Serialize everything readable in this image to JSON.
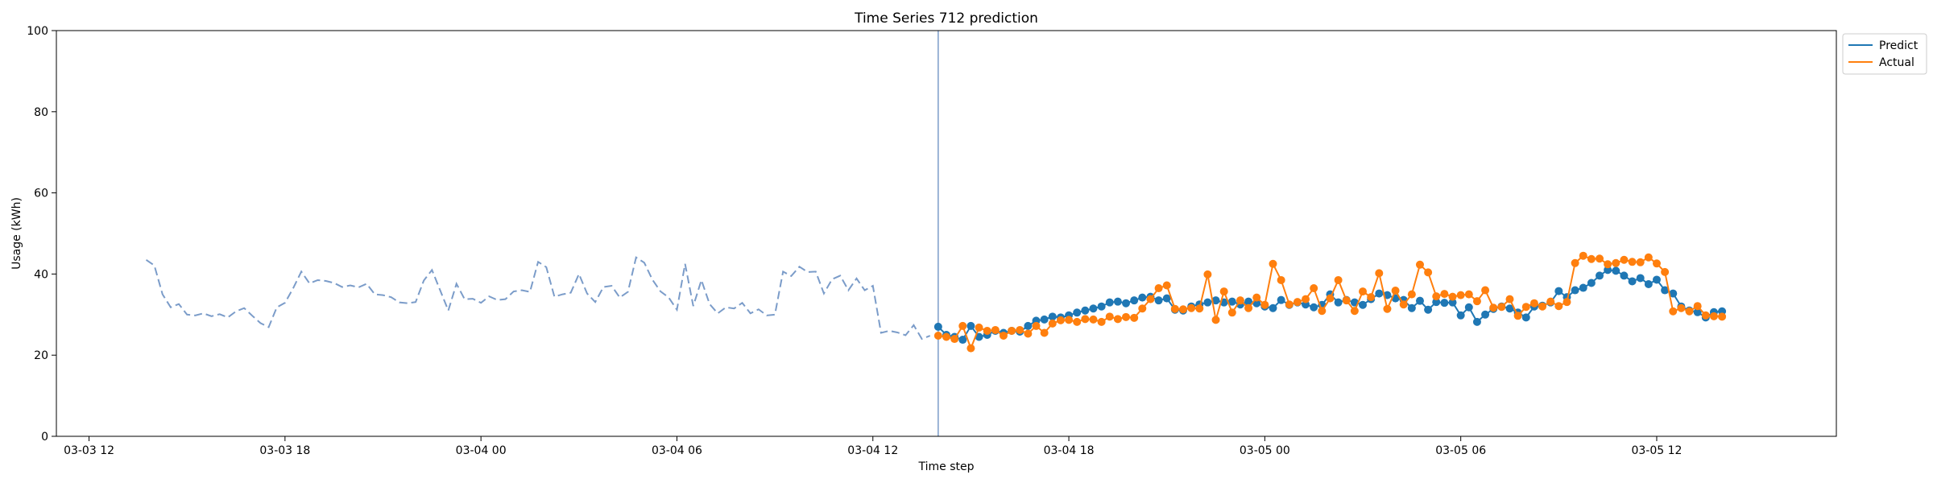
{
  "chart_data": {
    "type": "line",
    "title": "Time Series 712 prediction",
    "xlabel": "Time step",
    "ylabel": "Usage (kWh)",
    "ylim": [
      0,
      100
    ],
    "xlim": [
      "2024-03-03T11:00",
      "2024-03-05T17:30"
    ],
    "yticks": [
      0,
      20,
      40,
      60,
      80,
      100
    ],
    "xticks": [
      {
        "t": "2024-03-03T12:00",
        "label": "03-03 12"
      },
      {
        "t": "2024-03-03T18:00",
        "label": "03-03 18"
      },
      {
        "t": "2024-03-04T00:00",
        "label": "03-04 00"
      },
      {
        "t": "2024-03-04T06:00",
        "label": "03-04 06"
      },
      {
        "t": "2024-03-04T12:00",
        "label": "03-04 12"
      },
      {
        "t": "2024-03-04T18:00",
        "label": "03-04 18"
      },
      {
        "t": "2024-03-05T00:00",
        "label": "03-05 00"
      },
      {
        "t": "2024-03-05T06:00",
        "label": "03-05 06"
      },
      {
        "t": "2024-03-05T12:00",
        "label": "03-05 12"
      }
    ],
    "grid": false,
    "legend_position": "outside top-right",
    "prediction_start": "2024-03-04T14:00",
    "colors": {
      "predict": "#1f77b4",
      "actual": "#ff7f0e",
      "history": "#7b9cc9",
      "split_line": "#7b9cc9"
    },
    "history": {
      "start": "2024-03-03T13:45",
      "step_minutes": 15,
      "values": [
        43.5,
        42.1,
        35.0,
        31.8,
        32.6,
        30.0,
        29.8,
        30.3,
        29.6,
        30.1,
        29.3,
        30.8,
        31.6,
        29.7,
        27.9,
        26.9,
        31.8,
        32.9,
        36.5,
        40.6,
        37.7,
        38.5,
        38.3,
        37.8,
        36.8,
        37.2,
        36.7,
        37.6,
        35.0,
        34.8,
        34.3,
        33.0,
        32.8,
        33.1,
        38.4,
        41.0,
        36.0,
        31.0,
        37.6,
        33.8,
        33.9,
        32.9,
        34.5,
        33.6,
        33.8,
        35.7,
        36.0,
        35.6,
        43.0,
        41.7,
        34.4,
        35.0,
        35.4,
        40.0,
        35.2,
        33.1,
        36.8,
        37.1,
        34.2,
        35.6,
        44.1,
        42.8,
        38.6,
        35.7,
        34.2,
        31.2,
        42.5,
        32.1,
        38.5,
        32.6,
        30.3,
        31.8,
        31.5,
        32.9,
        30.3,
        31.3,
        29.8,
        30.0,
        40.6,
        39.5,
        41.8,
        40.5,
        40.6,
        35.2,
        38.7,
        39.6,
        36.0,
        38.9,
        36.0,
        37.1,
        25.5,
        26.0,
        25.6,
        24.9,
        27.4,
        24.0,
        24.8
      ]
    },
    "series": [
      {
        "name": "Predict",
        "start": "2024-03-04T14:00",
        "step_minutes": 15,
        "values": [
          27.0,
          25.0,
          24.5,
          23.8,
          27.2,
          24.5,
          25.0,
          26.0,
          25.5,
          26.0,
          25.8,
          27.2,
          28.5,
          28.8,
          29.5,
          29.3,
          29.8,
          30.5,
          31.0,
          31.5,
          32.0,
          33.0,
          33.2,
          32.8,
          33.5,
          34.2,
          34.4,
          33.5,
          34.0,
          31.2,
          31.0,
          32.0,
          32.5,
          33.0,
          33.5,
          33.0,
          33.2,
          32.5,
          33.2,
          32.8,
          32.0,
          31.6,
          33.6,
          32.4,
          33.0,
          32.5,
          31.8,
          32.4,
          35.0,
          33.0,
          33.6,
          33.0,
          32.4,
          33.8,
          35.2,
          34.8,
          34.0,
          33.6,
          31.6,
          33.4,
          31.2,
          33.1,
          32.9,
          33.0,
          29.8,
          31.8,
          28.2,
          30.0,
          31.4,
          32.0,
          31.5,
          30.5,
          29.3,
          32.0,
          32.2,
          33.0,
          35.8,
          34.3,
          36.0,
          36.6,
          37.8,
          39.6,
          41.0,
          40.8,
          39.6,
          38.2,
          39.0,
          37.5,
          38.6,
          36.0,
          35.2,
          32.0,
          31.0,
          30.6,
          29.3,
          30.6,
          30.8
        ]
      },
      {
        "name": "Actual",
        "start": "2024-03-04T14:00",
        "step_minutes": 15,
        "values": [
          24.8,
          24.5,
          24.0,
          27.2,
          21.7,
          26.8,
          26.0,
          26.2,
          24.8,
          26.0,
          26.2,
          25.3,
          27.2,
          25.5,
          27.8,
          28.6,
          28.7,
          28.2,
          28.9,
          28.8,
          28.2,
          29.5,
          28.9,
          29.4,
          29.2,
          31.5,
          33.8,
          36.5,
          37.2,
          31.4,
          31.3,
          31.6,
          31.5,
          39.9,
          28.7,
          35.7,
          30.5,
          33.5,
          31.6,
          34.2,
          32.4,
          42.5,
          38.5,
          32.5,
          33.1,
          33.8,
          36.5,
          30.9,
          34.0,
          38.5,
          33.5,
          30.9,
          35.7,
          34.3,
          40.2,
          31.4,
          35.9,
          32.5,
          35.0,
          42.3,
          40.4,
          34.5,
          35.1,
          34.4,
          34.8,
          35.0,
          33.3,
          36.0,
          31.7,
          31.9,
          33.8,
          29.7,
          31.9,
          32.8,
          32.0,
          33.2,
          32.1,
          33.1,
          42.7,
          44.5,
          43.7,
          43.8,
          42.4,
          42.7,
          43.5,
          43.0,
          42.9,
          44.1,
          42.6,
          40.5,
          30.8,
          31.6,
          30.8,
          32.1,
          29.8,
          29.6,
          29.5
        ]
      }
    ]
  }
}
